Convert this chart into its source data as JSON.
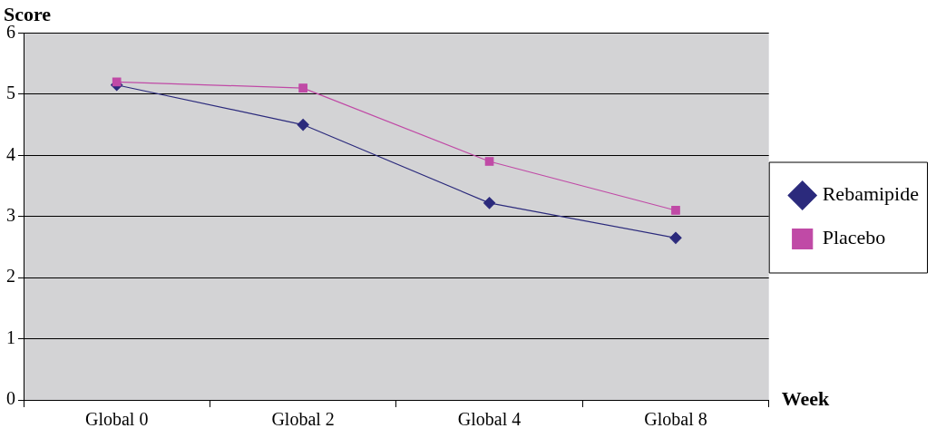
{
  "chart_data": {
    "type": "line",
    "title": "Score",
    "xlabel": "Week",
    "categories": [
      "Global 0",
      "Global 2",
      "Global 4",
      "Global 8"
    ],
    "series": [
      {
        "name": "Rebamipide",
        "color": "#2b2a7c",
        "marker": "diamond",
        "values": [
          5.15,
          4.5,
          3.22,
          2.65
        ]
      },
      {
        "name": "Placebo",
        "color": "#c04aa6",
        "marker": "square",
        "values": [
          5.2,
          5.1,
          3.9,
          3.1
        ]
      }
    ],
    "ylim": [
      0,
      6
    ],
    "yticks": [
      0,
      1,
      2,
      3,
      4,
      5,
      6
    ],
    "grid": "y",
    "legend": "right",
    "line_style": "solid"
  }
}
